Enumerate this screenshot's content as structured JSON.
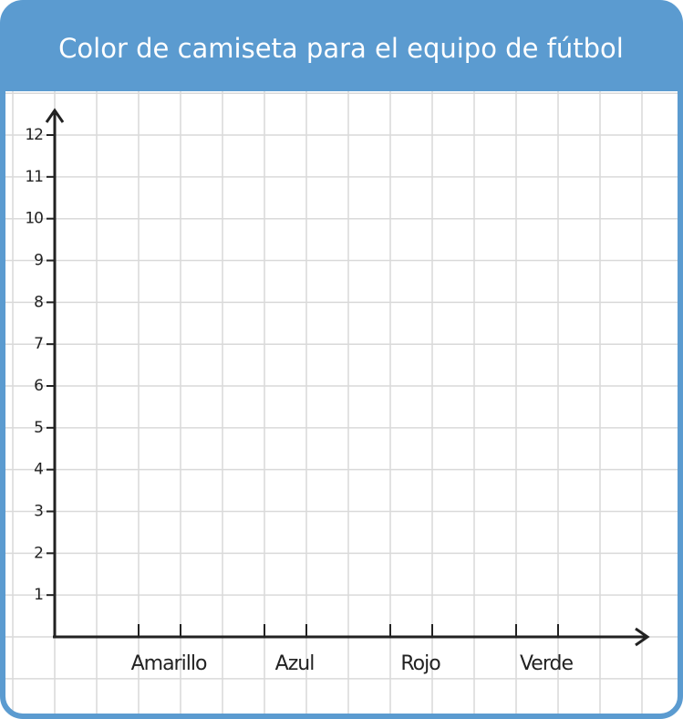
{
  "chart_data": {
    "type": "bar",
    "title": "Color de camiseta para el equipo de fútbol",
    "categories": [
      "Amarillo",
      "Azul",
      "Rojo",
      "Verde"
    ],
    "ylim": [
      0,
      12
    ],
    "yticks": [
      1,
      2,
      3,
      4,
      5,
      6,
      7,
      8,
      9,
      10,
      11,
      12
    ]
  }
}
